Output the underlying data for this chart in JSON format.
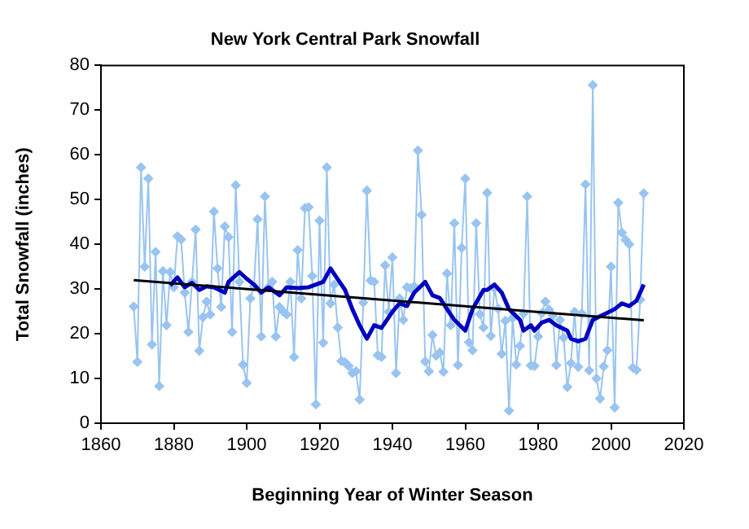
{
  "chart_data": {
    "type": "line",
    "title": "New York Central Park Snowfall",
    "xlabel": "Beginning Year of Winter Season",
    "ylabel": "Total Snowfall (inches)",
    "xlim": [
      1860,
      2020
    ],
    "xticks": [
      1860,
      1880,
      1900,
      1920,
      1940,
      1960,
      1980,
      2000,
      2020
    ],
    "ylim": [
      0,
      80
    ],
    "yticks": [
      0,
      10,
      20,
      30,
      40,
      50,
      60,
      70,
      80
    ],
    "grid": false,
    "legend": false,
    "series": [
      {
        "color": "#99c4f0",
        "marker": "diamond",
        "x": [
          1869,
          1870,
          1871,
          1872,
          1873,
          1874,
          1875,
          1876,
          1877,
          1878,
          1879,
          1880,
          1881,
          1882,
          1883,
          1884,
          1885,
          1886,
          1887,
          1888,
          1889,
          1890,
          1891,
          1892,
          1893,
          1894,
          1895,
          1896,
          1897,
          1898,
          1899,
          1900,
          1901,
          1902,
          1903,
          1904,
          1905,
          1906,
          1907,
          1908,
          1909,
          1910,
          1911,
          1912,
          1913,
          1914,
          1915,
          1916,
          1917,
          1918,
          1919,
          1920,
          1921,
          1922,
          1923,
          1924,
          1925,
          1926,
          1927,
          1928,
          1929,
          1930,
          1931,
          1932,
          1933,
          1934,
          1935,
          1936,
          1937,
          1938,
          1939,
          1940,
          1941,
          1942,
          1943,
          1944,
          1945,
          1946,
          1947,
          1948,
          1949,
          1950,
          1951,
          1952,
          1953,
          1954,
          1955,
          1956,
          1957,
          1958,
          1959,
          1960,
          1961,
          1962,
          1963,
          1964,
          1965,
          1966,
          1967,
          1968,
          1969,
          1970,
          1971,
          1972,
          1973,
          1974,
          1975,
          1976,
          1977,
          1978,
          1979,
          1980,
          1981,
          1982,
          1983,
          1984,
          1985,
          1986,
          1987,
          1988,
          1989,
          1990,
          1991,
          1992,
          1993,
          1994,
          1995,
          1996,
          1997,
          1998,
          1999,
          2000,
          2001,
          2002,
          2003,
          2004,
          2005,
          2006,
          2007,
          2008,
          2009
        ],
        "values": [
          26.1,
          13.7,
          57.2,
          35.0,
          54.7,
          17.6,
          38.3,
          8.3,
          34.0,
          21.9,
          33.8,
          30.4,
          41.8,
          41.1,
          29.2,
          20.4,
          31.6,
          43.3,
          16.2,
          23.7,
          27.2,
          24.3,
          47.3,
          34.6,
          26.0,
          44.0,
          41.6,
          20.4,
          53.2,
          31.6,
          13.1,
          9.0,
          27.9,
          30.6,
          45.6,
          19.4,
          50.7,
          30.4,
          31.6,
          19.4,
          26.0,
          25.0,
          24.3,
          31.6,
          14.8,
          38.7,
          27.9,
          48.1,
          48.3,
          32.9,
          4.2,
          45.3,
          18.0,
          57.2,
          26.8,
          31.0,
          21.4,
          13.9,
          13.6,
          12.8,
          11.2,
          11.6,
          5.3,
          27.0,
          52.0,
          31.9,
          31.6,
          15.2,
          14.8,
          35.3,
          24.9,
          37.1,
          11.2,
          27.9,
          23.1,
          30.4,
          30.2,
          30.6,
          61.0,
          46.6,
          13.8,
          11.6,
          19.7,
          15.1,
          15.8,
          11.5,
          33.5,
          21.9,
          44.7,
          13.0,
          39.2,
          54.7,
          18.1,
          16.3,
          44.7,
          24.4,
          21.4,
          51.5,
          19.5,
          30.2,
          25.6,
          15.5,
          22.9,
          2.8,
          23.5,
          13.1,
          17.3,
          24.5,
          50.7,
          12.9,
          12.8,
          19.4,
          24.6,
          27.2,
          25.4,
          24.1,
          13.0,
          23.1,
          19.1,
          8.1,
          13.4,
          24.9,
          12.6,
          24.5,
          53.4,
          11.8,
          75.6,
          10.0,
          5.5,
          12.7,
          16.3,
          35.0,
          3.5,
          49.3,
          42.6,
          41.0,
          40.0,
          12.4,
          11.9,
          27.6,
          51.4
        ]
      },
      {
        "color": "#0000c0",
        "marker": "none",
        "x": [
          1879,
          1881,
          1883,
          1885,
          1887,
          1889,
          1891,
          1894,
          1895,
          1898,
          1900,
          1902,
          1904,
          1906,
          1909,
          1911,
          1914,
          1917,
          1919,
          1921,
          1923,
          1925,
          1927,
          1929,
          1931,
          1933,
          1935,
          1937,
          1938,
          1940,
          1942,
          1944,
          1946,
          1949,
          1951,
          1953,
          1955,
          1957,
          1960,
          1962,
          1965,
          1966,
          1968,
          1970,
          1972,
          1975,
          1976,
          1978,
          1979,
          1981,
          1983,
          1985,
          1988,
          1989,
          1991,
          1993,
          1995,
          1998,
          2001,
          2003,
          2005,
          2007,
          2009
        ],
        "values": [
          30.8,
          32.6,
          30.4,
          31.4,
          29.8,
          30.6,
          30.4,
          29.2,
          31.6,
          33.8,
          32.3,
          31.0,
          29.2,
          30.4,
          28.6,
          30.4,
          30.2,
          30.4,
          31.0,
          31.6,
          34.6,
          32.2,
          29.8,
          25.5,
          21.9,
          18.9,
          21.9,
          21.3,
          22.5,
          24.9,
          26.8,
          26.2,
          29.2,
          31.6,
          28.6,
          28.0,
          25.5,
          23.1,
          20.7,
          25.5,
          29.8,
          29.8,
          31.0,
          29.2,
          25.5,
          23.1,
          20.7,
          21.9,
          20.7,
          22.5,
          23.1,
          21.9,
          20.7,
          18.9,
          18.3,
          18.9,
          23.1,
          24.3,
          25.5,
          26.8,
          26.2,
          27.4,
          31.0
        ]
      },
      {
        "color": "#000000",
        "marker": "none",
        "x": [
          1869,
          2009
        ],
        "values": [
          32.0,
          23.0
        ]
      }
    ]
  }
}
